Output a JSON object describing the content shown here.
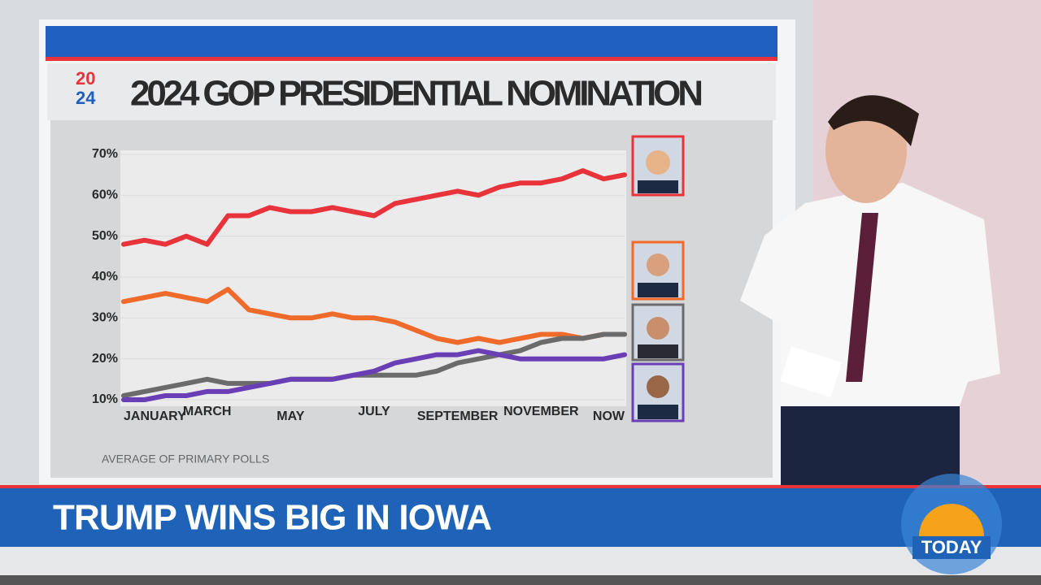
{
  "chart_data": {
    "type": "line",
    "title": "2024 GOP PRESIDENTIAL NOMINATION",
    "logo": [
      "20",
      "24"
    ],
    "note": "AVERAGE OF PRIMARY POLLS",
    "categories": [
      "JANUARY",
      null,
      null,
      null,
      "MARCH",
      null,
      null,
      null,
      "MAY",
      null,
      null,
      null,
      "JULY",
      null,
      null,
      null,
      "SEPTEMBER",
      null,
      null,
      null,
      "NOVEMBER",
      null,
      null,
      null,
      "NOW"
    ],
    "ylim": [
      10,
      70
    ],
    "yticks": [
      {
        "value": 10,
        "label": "10%"
      },
      {
        "value": 20,
        "label": "20%"
      },
      {
        "value": 30,
        "label": "30%"
      },
      {
        "value": 40,
        "label": "40%"
      },
      {
        "value": 50,
        "label": "50%"
      },
      {
        "value": 60,
        "label": "60%"
      },
      {
        "value": 70,
        "label": "70%"
      }
    ],
    "series": [
      {
        "color": "#e8333a",
        "values": [
          48,
          49,
          48,
          50,
          48,
          55,
          55,
          57,
          56,
          56,
          57,
          56,
          55,
          58,
          59,
          60,
          61,
          60,
          62,
          63,
          63,
          64,
          66,
          64,
          65
        ]
      },
      {
        "color": "#f06a2a",
        "values": [
          34,
          35,
          36,
          35,
          34,
          37,
          32,
          31,
          30,
          30,
          31,
          30,
          30,
          29,
          27,
          25,
          24,
          25,
          24,
          25,
          26,
          26,
          25,
          26,
          26
        ]
      },
      {
        "color": "#6b6b6b",
        "values": [
          11,
          12,
          13,
          14,
          15,
          14,
          14,
          14,
          15,
          15,
          15,
          16,
          16,
          16,
          16,
          17,
          19,
          20,
          21,
          22,
          24,
          25,
          25,
          26,
          26
        ]
      },
      {
        "color": "#6a3fb5",
        "values": [
          10,
          10,
          11,
          11,
          12,
          12,
          13,
          14,
          15,
          15,
          15,
          16,
          17,
          19,
          20,
          21,
          21,
          22,
          21,
          20,
          20,
          20,
          20,
          20,
          21
        ]
      }
    ]
  },
  "banner": {
    "headline": "TRUMP WINS BIG IN IOWA",
    "logo": "TODAY"
  }
}
